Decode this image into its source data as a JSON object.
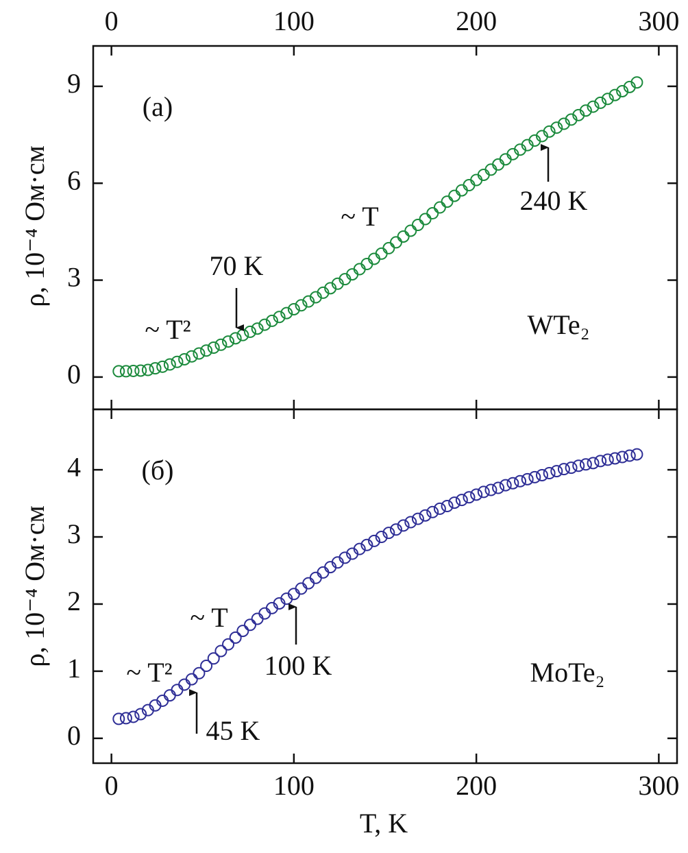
{
  "chart_data": [
    {
      "type": "scatter",
      "y_label": "ρ, 10⁻⁴ Ом·см",
      "x": [
        4,
        8,
        12,
        16,
        20,
        24,
        28,
        32,
        36,
        40,
        44,
        48,
        52,
        56,
        60,
        64,
        68,
        72,
        76,
        80,
        84,
        88,
        92,
        96,
        100,
        104,
        108,
        112,
        116,
        120,
        124,
        128,
        132,
        136,
        140,
        144,
        148,
        152,
        156,
        160,
        164,
        168,
        172,
        176,
        180,
        184,
        188,
        192,
        196,
        200,
        204,
        208,
        212,
        216,
        220,
        224,
        228,
        232,
        236,
        240,
        244,
        248,
        252,
        256,
        260,
        264,
        268,
        272,
        276,
        280,
        284,
        288
      ],
      "series": [
        {
          "name": "WTe₂",
          "color": "#1b8a3c",
          "values": [
            0.18,
            0.18,
            0.19,
            0.2,
            0.22,
            0.27,
            0.32,
            0.39,
            0.47,
            0.55,
            0.64,
            0.73,
            0.82,
            0.91,
            1.0,
            1.1,
            1.2,
            1.3,
            1.4,
            1.5,
            1.62,
            1.74,
            1.86,
            1.98,
            2.1,
            2.22,
            2.34,
            2.47,
            2.61,
            2.75,
            2.89,
            3.03,
            3.18,
            3.34,
            3.5,
            3.66,
            3.82,
            3.99,
            4.17,
            4.35,
            4.53,
            4.71,
            4.89,
            5.07,
            5.25,
            5.43,
            5.61,
            5.78,
            5.94,
            6.1,
            6.26,
            6.42,
            6.58,
            6.74,
            6.9,
            7.04,
            7.18,
            7.32,
            7.46,
            7.6,
            7.72,
            7.84,
            7.97,
            8.11,
            8.25,
            8.37,
            8.49,
            8.61,
            8.73,
            8.85,
            8.98,
            9.12
          ]
        }
      ],
      "xlim": [
        -10,
        310
      ],
      "xticks": [
        0,
        100,
        200,
        300
      ],
      "ylim": [
        -1,
        10.25
      ],
      "yticks": [
        0,
        3,
        6,
        9
      ],
      "annotations": [
        "(a)",
        "~ T²",
        "70 K",
        "~ T",
        "240 K",
        "WTe₂"
      ]
    },
    {
      "type": "scatter",
      "y_label": "ρ, 10⁻⁴ Ом·см",
      "x_label": "T, K",
      "x": [
        4,
        8,
        12,
        16,
        20,
        24,
        28,
        32,
        36,
        40,
        44,
        48,
        52,
        56,
        60,
        64,
        68,
        72,
        76,
        80,
        84,
        88,
        92,
        96,
        100,
        104,
        108,
        112,
        116,
        120,
        124,
        128,
        132,
        136,
        140,
        144,
        148,
        152,
        156,
        160,
        164,
        168,
        172,
        176,
        180,
        184,
        188,
        192,
        196,
        200,
        204,
        208,
        212,
        216,
        220,
        224,
        228,
        232,
        236,
        240,
        244,
        248,
        252,
        256,
        260,
        264,
        268,
        272,
        276,
        280,
        284,
        288
      ],
      "series": [
        {
          "name": "MoTe₂",
          "color": "#2e2e96",
          "values": [
            0.29,
            0.3,
            0.32,
            0.36,
            0.42,
            0.49,
            0.56,
            0.64,
            0.72,
            0.8,
            0.88,
            0.97,
            1.08,
            1.19,
            1.3,
            1.4,
            1.5,
            1.6,
            1.69,
            1.78,
            1.86,
            1.94,
            2.01,
            2.08,
            2.15,
            2.23,
            2.31,
            2.39,
            2.47,
            2.55,
            2.62,
            2.69,
            2.75,
            2.82,
            2.88,
            2.94,
            3.0,
            3.06,
            3.11,
            3.17,
            3.22,
            3.27,
            3.32,
            3.37,
            3.42,
            3.46,
            3.51,
            3.55,
            3.59,
            3.63,
            3.67,
            3.7,
            3.73,
            3.77,
            3.8,
            3.83,
            3.86,
            3.89,
            3.92,
            3.95,
            3.98,
            4.01,
            4.03,
            4.06,
            4.08,
            4.1,
            4.13,
            4.15,
            4.17,
            4.19,
            4.21,
            4.23
          ]
        }
      ],
      "xlim": [
        -10,
        310
      ],
      "xticks": [
        0,
        100,
        200,
        300
      ],
      "ylim": [
        -0.37,
        4.9
      ],
      "yticks": [
        0,
        1,
        2,
        3,
        4
      ],
      "annotations": [
        "(б)",
        "~ T",
        "~ T²",
        "100 K",
        "45 K",
        "MoTe₂"
      ]
    }
  ]
}
